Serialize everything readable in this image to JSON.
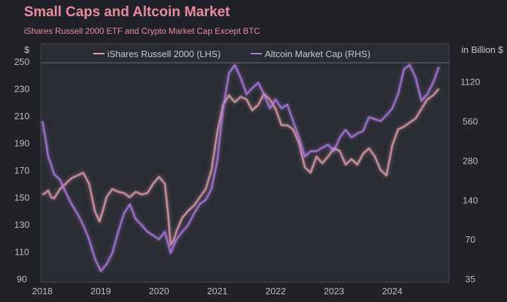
{
  "chart_data": {
    "type": "line",
    "title": "Small Caps and Altcoin Market",
    "subtitle": "iShares Russell 2000 ETF and Crypto Market Cap Except BTC",
    "x_ticks": [
      "2018",
      "2019",
      "2020",
      "2021",
      "2022",
      "2023",
      "2024"
    ],
    "xlim": [
      2018.0,
      2024.95
    ],
    "left_axis": {
      "unit": "$",
      "ticks": [
        90,
        110,
        130,
        150,
        170,
        190,
        210,
        230,
        250
      ],
      "ylim": [
        90,
        250
      ]
    },
    "right_axis": {
      "unit": "in Billion $",
      "ticks": [
        35,
        70,
        140,
        280,
        560,
        1120
      ],
      "scale": "log2",
      "ylim": [
        35,
        1600
      ]
    },
    "series": [
      {
        "name": "iShares Russell 2000 (LHS)",
        "axis": "left",
        "color": "#e8a3b0",
        "x": [
          2018.0,
          2018.05,
          2018.1,
          2018.15,
          2018.2,
          2018.3,
          2018.4,
          2018.5,
          2018.6,
          2018.7,
          2018.8,
          2018.9,
          2018.98,
          2019.05,
          2019.1,
          2019.2,
          2019.3,
          2019.4,
          2019.5,
          2019.6,
          2019.7,
          2019.8,
          2019.9,
          2020.0,
          2020.1,
          2020.15,
          2020.2,
          2020.25,
          2020.3,
          2020.4,
          2020.5,
          2020.6,
          2020.7,
          2020.8,
          2020.9,
          2021.0,
          2021.1,
          2021.2,
          2021.3,
          2021.4,
          2021.5,
          2021.6,
          2021.7,
          2021.8,
          2021.9,
          2022.0,
          2022.1,
          2022.2,
          2022.3,
          2022.4,
          2022.5,
          2022.6,
          2022.7,
          2022.8,
          2022.9,
          2023.0,
          2023.1,
          2023.2,
          2023.3,
          2023.4,
          2023.5,
          2023.6,
          2023.7,
          2023.8,
          2023.9,
          2024.0,
          2024.1,
          2024.2,
          2024.3,
          2024.4,
          2024.5,
          2024.6,
          2024.7,
          2024.8
        ],
        "y": [
          152,
          153,
          155,
          150,
          149,
          156,
          160,
          164,
          166,
          168,
          160,
          140,
          132,
          142,
          150,
          156,
          154,
          153,
          150,
          154,
          152,
          153,
          160,
          165,
          160,
          140,
          115,
          118,
          125,
          135,
          140,
          144,
          150,
          156,
          170,
          198,
          218,
          225,
          220,
          224,
          222,
          214,
          218,
          226,
          222,
          215,
          203,
          203,
          200,
          190,
          172,
          168,
          180,
          175,
          180,
          186,
          184,
          174,
          178,
          174,
          182,
          186,
          180,
          170,
          166,
          188,
          200,
          202,
          205,
          208,
          215,
          222,
          225,
          230
        ]
      },
      {
        "name": "Altcoin Market Cap (RHS)",
        "axis": "right",
        "color": "#b27ee8",
        "x": [
          2018.0,
          2018.05,
          2018.1,
          2018.15,
          2018.2,
          2018.3,
          2018.4,
          2018.5,
          2018.6,
          2018.7,
          2018.8,
          2018.9,
          2019.0,
          2019.1,
          2019.2,
          2019.3,
          2019.4,
          2019.5,
          2019.6,
          2019.7,
          2019.8,
          2019.9,
          2020.0,
          2020.1,
          2020.2,
          2020.3,
          2020.4,
          2020.5,
          2020.6,
          2020.7,
          2020.8,
          2020.9,
          2021.0,
          2021.1,
          2021.2,
          2021.3,
          2021.4,
          2021.5,
          2021.6,
          2021.7,
          2021.8,
          2021.9,
          2022.0,
          2022.1,
          2022.2,
          2022.3,
          2022.4,
          2022.5,
          2022.6,
          2022.7,
          2022.8,
          2022.9,
          2023.0,
          2023.1,
          2023.2,
          2023.3,
          2023.4,
          2023.5,
          2023.6,
          2023.7,
          2023.8,
          2023.9,
          2024.0,
          2024.1,
          2024.2,
          2024.3,
          2024.4,
          2024.5,
          2024.6,
          2024.7,
          2024.8
        ],
        "y": [
          560,
          420,
          300,
          260,
          220,
          200,
          160,
          130,
          110,
          90,
          70,
          50,
          40,
          45,
          55,
          80,
          110,
          130,
          100,
          90,
          80,
          75,
          70,
          80,
          55,
          70,
          80,
          90,
          110,
          130,
          140,
          170,
          280,
          700,
          1300,
          1500,
          1200,
          900,
          1000,
          1100,
          900,
          700,
          820,
          700,
          750,
          560,
          420,
          300,
          330,
          330,
          350,
          370,
          330,
          420,
          480,
          420,
          450,
          470,
          600,
          580,
          560,
          620,
          700,
          900,
          1400,
          1500,
          1200,
          800,
          900,
          1100,
          1450
        ]
      }
    ],
    "legend": "top-center",
    "grid": false
  }
}
